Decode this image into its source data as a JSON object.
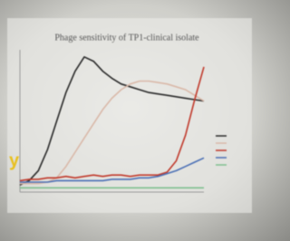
{
  "chart_data": {
    "type": "line",
    "title": "Phage sensitivity of TP1-clinical isolate",
    "x": [
      0,
      1,
      2,
      3,
      4,
      5,
      6,
      7,
      8,
      9,
      10,
      11,
      12,
      13,
      14,
      15,
      16,
      17,
      18,
      19,
      20
    ],
    "xlim": [
      0,
      20
    ],
    "ylim": [
      0,
      100
    ],
    "grid": false,
    "series": [
      {
        "color": "#2a2a2a",
        "values": [
          5,
          8,
          15,
          30,
          50,
          70,
          85,
          95,
          92,
          85,
          80,
          76,
          74,
          72,
          70,
          69,
          68,
          67,
          66,
          65,
          64
        ]
      },
      {
        "color": "#d9b8a8",
        "values": [
          6,
          6,
          6,
          7,
          10,
          18,
          28,
          38,
          48,
          58,
          66,
          72,
          76,
          78,
          78,
          77,
          76,
          74,
          72,
          68,
          64
        ]
      },
      {
        "color": "#c0392b",
        "values": [
          8,
          9,
          9,
          10,
          10,
          11,
          10,
          11,
          12,
          11,
          12,
          12,
          11,
          12,
          12,
          12,
          14,
          22,
          40,
          65,
          88
        ]
      },
      {
        "color": "#4a6fb5",
        "values": [
          7,
          7,
          7,
          7,
          8,
          8,
          8,
          8,
          8,
          8,
          9,
          9,
          9,
          10,
          10,
          11,
          13,
          15,
          18,
          21,
          24
        ]
      },
      {
        "color": "#7fbf8f",
        "values": [
          3,
          3,
          3,
          3,
          3,
          3,
          3,
          3,
          3,
          3,
          3,
          3,
          3,
          3,
          3,
          3,
          3,
          3,
          3,
          3,
          3
        ]
      }
    ],
    "fragment": "y"
  }
}
